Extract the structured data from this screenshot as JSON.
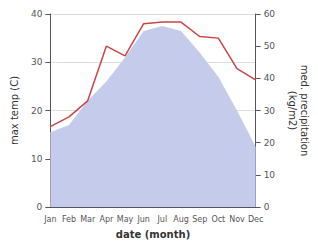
{
  "chart_data": {
    "type": "line",
    "xlabel": "date (month)",
    "ylabel": "max temp (C)",
    "y2label": "med. precipitation\n(kg/m2)",
    "categories": [
      "Jan",
      "Feb",
      "Mar",
      "Apr",
      "May",
      "Jun",
      "Jul",
      "Aug",
      "Sep",
      "Oct",
      "Nov",
      "Dec"
    ],
    "series": [
      {
        "type": "area",
        "color": "#c5cceb",
        "values": [
          15.5,
          17.0,
          22.0,
          26.0,
          31.0,
          36.5,
          37.5,
          36.5,
          32.0,
          27.0,
          20.0,
          12.5
        ]
      },
      {
        "type": "line",
        "axis": "y2",
        "color": "#cc4444",
        "values": [
          25.0,
          28.0,
          33.0,
          50.0,
          47.0,
          57.0,
          57.5,
          57.5,
          53.0,
          52.5,
          43.0,
          39.5
        ]
      }
    ],
    "ylim": [
      0,
      40
    ],
    "yticks": [
      0,
      10,
      20,
      30,
      40
    ],
    "y2lim": [
      0,
      60
    ],
    "y2ticks": [
      0,
      10,
      20,
      30,
      40,
      50,
      60
    ],
    "grid": true
  }
}
